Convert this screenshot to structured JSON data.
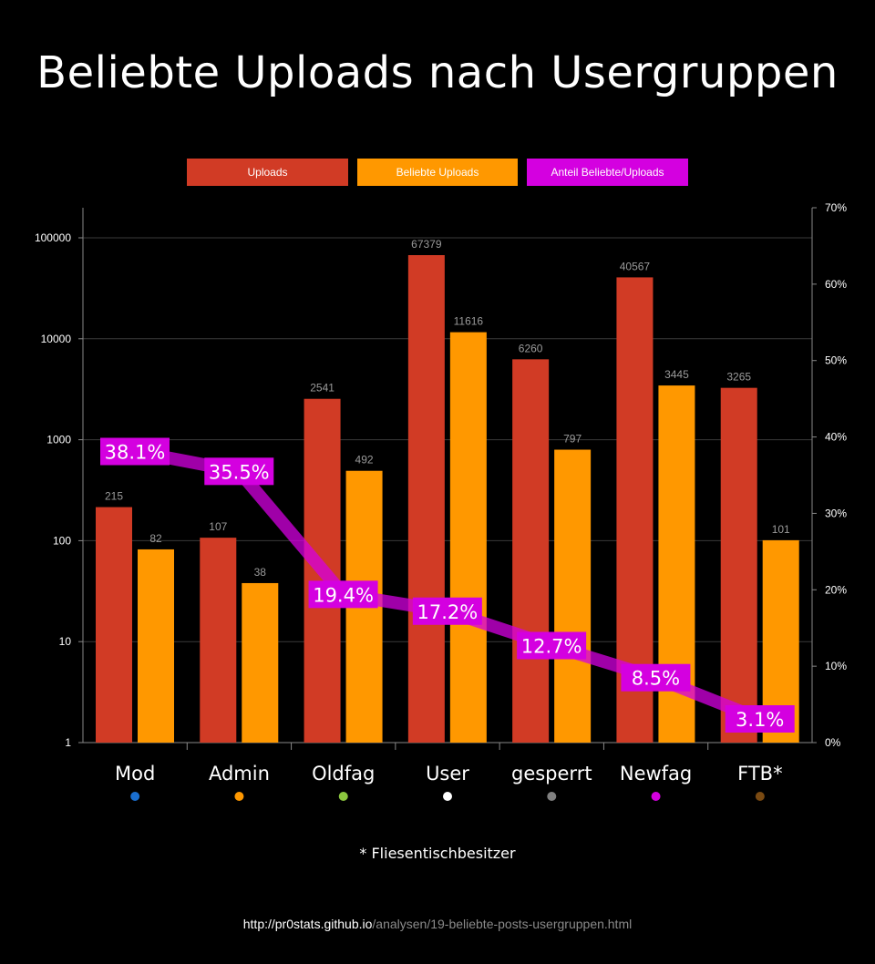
{
  "title": "Beliebte Uploads nach Usergruppen",
  "footnote": "* Fliesentischbesitzer",
  "source": {
    "host": "http://pr0stats.github.io",
    "path": "/analysen/19-beliebte-posts-usergruppen.html"
  },
  "colors": {
    "uploads": "#d13b25",
    "beliebte": "#ff9800",
    "anteil": "#d400e0",
    "grid": "#3a3a3a",
    "axis": "#888888"
  },
  "chart_data": {
    "type": "bar",
    "categories": [
      "Mod",
      "Admin",
      "Oldfag",
      "User",
      "gesperrt",
      "Newfag",
      "FTB*"
    ],
    "group_dot_colors": [
      "#1a6fd0",
      "#ff9800",
      "#8cc63f",
      "#ffffff",
      "#808080",
      "#d400e0",
      "#7a4a12"
    ],
    "series": [
      {
        "name": "Uploads",
        "axis": "left",
        "values": [
          215,
          107,
          2541,
          67379,
          6260,
          40567,
          3265
        ]
      },
      {
        "name": "Beliebte Uploads",
        "axis": "left",
        "values": [
          82,
          38,
          492,
          11616,
          797,
          3445,
          101
        ]
      },
      {
        "name": "Anteil Beliebte/Uploads",
        "axis": "right",
        "type": "line",
        "values": [
          38.1,
          35.5,
          19.4,
          17.2,
          12.7,
          8.5,
          3.1
        ],
        "labels": [
          "38.1%",
          "35.5%",
          "19.4%",
          "17.2%",
          "12.7%",
          "8.5%",
          "3.1%"
        ]
      }
    ],
    "y_left": {
      "scale": "log",
      "ticks": [
        "1",
        "10",
        "100",
        "1000",
        "10000",
        "100000"
      ],
      "range": [
        1,
        200000
      ]
    },
    "y_right": {
      "scale": "linear",
      "ticks": [
        "0%",
        "10%",
        "20%",
        "30%",
        "40%",
        "50%",
        "60%",
        "70%"
      ],
      "range": [
        0,
        70
      ]
    },
    "grid": true,
    "legend_position": "top-center"
  }
}
